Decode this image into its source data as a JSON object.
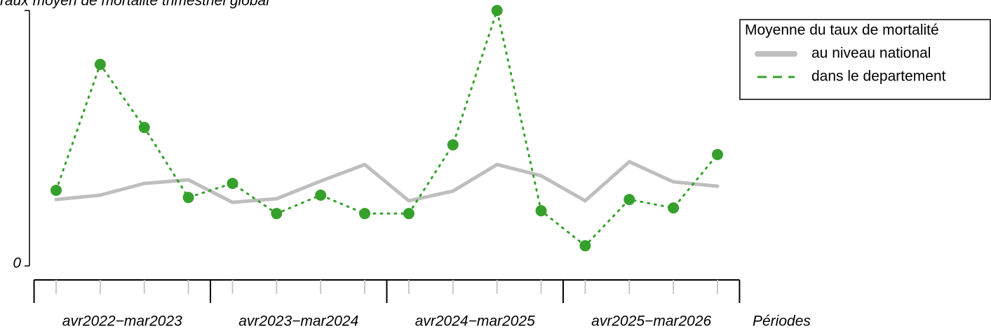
{
  "chart_data": {
    "type": "line",
    "y_label": "Taux moyen de mortalité trimestriel global",
    "x_label": "Périodes",
    "categories": [
      null,
      null,
      null,
      null,
      null,
      null,
      null,
      null,
      null,
      null,
      null,
      null,
      null,
      null,
      null,
      null
    ],
    "groups": [
      "avr2022−mar2023",
      "avr2023−mar2024",
      "avr2024−mar2025",
      "avr2025−mar2026"
    ],
    "ylim": [
      0,
      100
    ],
    "yticks": [
      0
    ],
    "legend_title": "Moyenne du taux de mortalité",
    "legend": "top-right",
    "series": [
      {
        "name": "au niveau national",
        "color": "#bebebe",
        "values": [
          26.0,
          27.7,
          32.3,
          33.7,
          24.9,
          26.3,
          33.2,
          39.7,
          25.5,
          29.3,
          39.7,
          35.3,
          25.5,
          40.8,
          32.9,
          31.2
        ]
      },
      {
        "name": "dans le departement",
        "color": "#36a02c",
        "values": [
          29.6,
          78.9,
          54.2,
          26.8,
          32.3,
          20.5,
          27.7,
          20.5,
          20.5,
          47.4,
          100,
          21.6,
          7.9,
          26.0,
          22.7,
          43.6
        ]
      }
    ]
  }
}
